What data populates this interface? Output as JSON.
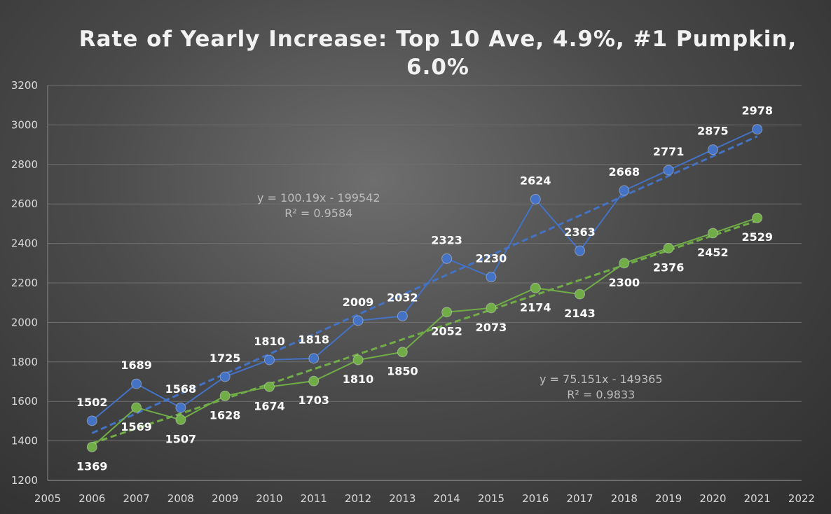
{
  "chart_data": {
    "type": "line",
    "title": "Rate of Yearly Increase: Top 10 Ave, 4.9%, #1 Pumpkin, 6.0%",
    "title_line1": "Rate of Yearly Increase: Top 10 Ave, 4.9%, #1 Pumpkin,",
    "title_line2": "6.0%",
    "x": [
      2006,
      2007,
      2008,
      2009,
      2010,
      2011,
      2012,
      2013,
      2014,
      2015,
      2016,
      2017,
      2018,
      2019,
      2020,
      2021
    ],
    "xlim": [
      2005,
      2022
    ],
    "ylim": [
      1200,
      3200
    ],
    "xticks": [
      2005,
      2006,
      2007,
      2008,
      2009,
      2010,
      2011,
      2012,
      2013,
      2014,
      2015,
      2016,
      2017,
      2018,
      2019,
      2020,
      2021,
      2022
    ],
    "yticks": [
      1200,
      1400,
      1600,
      1800,
      2000,
      2200,
      2400,
      2600,
      2800,
      3000,
      3200
    ],
    "grid": true,
    "xlabel": "",
    "ylabel": "",
    "series": [
      {
        "name": "#1 Pumpkin",
        "color": "#4472C4",
        "values": [
          1502,
          1689,
          1568,
          1725,
          1810,
          1818,
          2009,
          2032,
          2323,
          2230,
          2624,
          2363,
          2668,
          2771,
          2875,
          2978
        ],
        "label_position": "above",
        "trendline": {
          "slope": 100.19,
          "intercept": -199542,
          "equation": "y = 100.19x - 199542",
          "r2": "R² = 0.9584"
        }
      },
      {
        "name": "Top 10 Ave",
        "color": "#70AD47",
        "values": [
          1369,
          1569,
          1507,
          1628,
          1674,
          1703,
          1810,
          1850,
          2052,
          2073,
          2174,
          2143,
          2300,
          2376,
          2452,
          2529
        ],
        "label_position": "below",
        "trendline": {
          "slope": 75.151,
          "intercept": -149365,
          "equation": "y = 75.151x - 149365",
          "r2": "R² = 0.9833"
        }
      }
    ]
  }
}
